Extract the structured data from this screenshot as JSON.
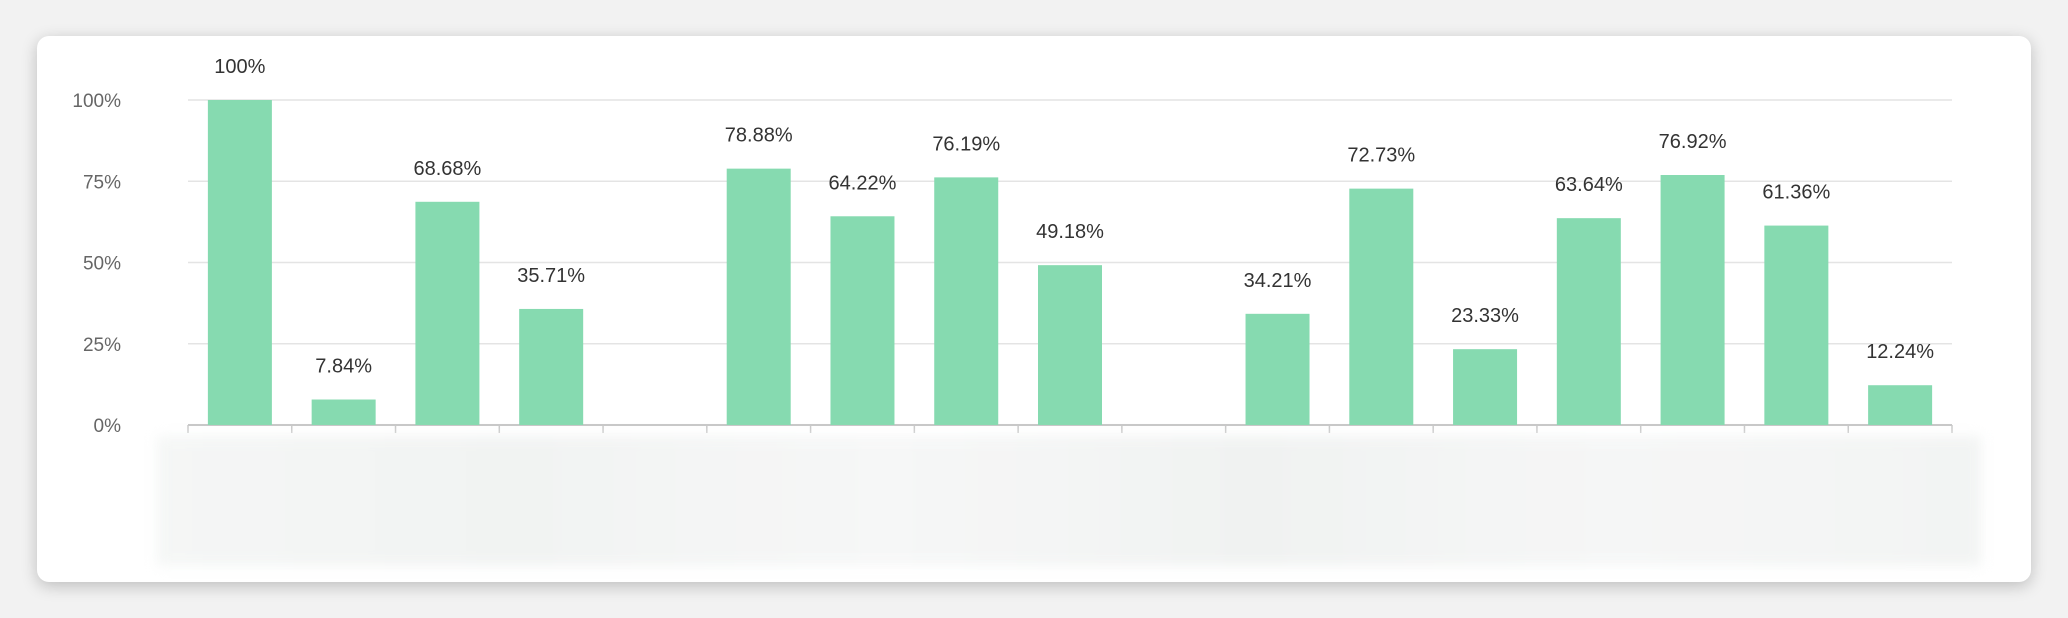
{
  "chart_data": {
    "type": "bar",
    "slot_count": 17,
    "bars": [
      {
        "slot": 0,
        "value": 100,
        "label": "100%"
      },
      {
        "slot": 1,
        "value": 7.84,
        "label": "7.84%"
      },
      {
        "slot": 2,
        "value": 68.68,
        "label": "68.68%"
      },
      {
        "slot": 3,
        "value": 35.71,
        "label": "35.71%"
      },
      {
        "slot": 5,
        "value": 78.88,
        "label": "78.88%"
      },
      {
        "slot": 6,
        "value": 64.22,
        "label": "64.22%"
      },
      {
        "slot": 7,
        "value": 76.19,
        "label": "76.19%"
      },
      {
        "slot": 8,
        "value": 49.18,
        "label": "49.18%"
      },
      {
        "slot": 10,
        "value": 34.21,
        "label": "34.21%"
      },
      {
        "slot": 11,
        "value": 72.73,
        "label": "72.73%"
      },
      {
        "slot": 12,
        "value": 23.33,
        "label": "23.33%"
      },
      {
        "slot": 13,
        "value": 63.64,
        "label": "63.64%"
      },
      {
        "slot": 14,
        "value": 76.92,
        "label": "76.92%"
      },
      {
        "slot": 15,
        "value": 61.36,
        "label": "61.36%"
      },
      {
        "slot": 16,
        "value": 12.24,
        "label": "12.24%"
      }
    ],
    "yticks": [
      {
        "value": 0,
        "label": "0%"
      },
      {
        "value": 25,
        "label": "25%"
      },
      {
        "value": 50,
        "label": "50%"
      },
      {
        "value": 75,
        "label": "75%"
      },
      {
        "value": 100,
        "label": "100%"
      }
    ],
    "ylim": [
      0,
      100
    ],
    "grid": true,
    "bar_color": "#86dab0",
    "grid_color": "#e4e4e4",
    "axis_color": "#c8c8c8",
    "text_color": "#333333",
    "axis_text_color": "#666666"
  }
}
